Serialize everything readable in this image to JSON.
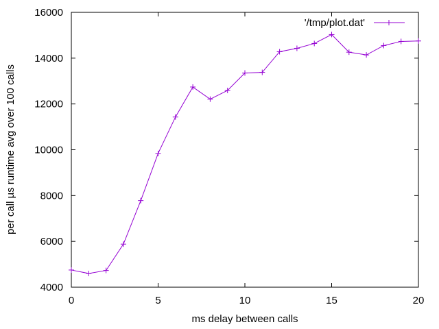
{
  "chart_data": {
    "type": "line",
    "title": "",
    "xlabel": "ms delay between calls",
    "ylabel": "per call µs runtime avg over 100 calls",
    "xlim": [
      0,
      20
    ],
    "ylim": [
      4000,
      16000
    ],
    "xticks": [
      0,
      5,
      10,
      15,
      20
    ],
    "yticks": [
      4000,
      6000,
      8000,
      10000,
      12000,
      14000,
      16000
    ],
    "grid": false,
    "legend_position": "top-right",
    "marker": "plus",
    "series": [
      {
        "name": "'/tmp/plot.dat'",
        "color": "#9400d3",
        "x": [
          0,
          1,
          2,
          3,
          4,
          5,
          6,
          7,
          8,
          9,
          10,
          11,
          12,
          13,
          14,
          15,
          16,
          17,
          18,
          19,
          20
        ],
        "y": [
          4750,
          4600,
          4730,
          5880,
          7780,
          9840,
          11430,
          12740,
          12210,
          12590,
          13350,
          13380,
          14280,
          14430,
          14640,
          15030,
          14260,
          14140,
          14550,
          14730,
          14750
        ]
      }
    ]
  }
}
